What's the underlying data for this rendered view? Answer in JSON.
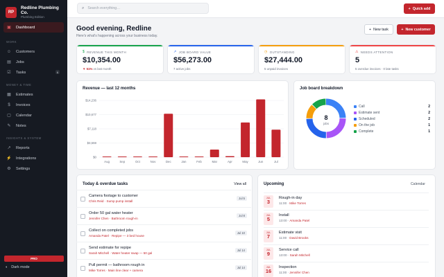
{
  "brand": {
    "logo": "RP",
    "name": "Redline Plumbing Co.",
    "subtitle": "Plumbing Edition"
  },
  "sidebar": {
    "dashboard": "Dashboard",
    "sections": {
      "work": "WORK",
      "money": "MONEY & TIME",
      "insights": "INSIGHTS & SYSTEM"
    },
    "items": {
      "customers": "Customers",
      "jobs": "Jobs",
      "tasks": "Tasks",
      "tasks_badge": "6",
      "estimates": "Estimates",
      "invoices": "Invoices",
      "calendar": "Calendar",
      "notes": "Notes",
      "reports": "Reports",
      "integrations": "Integrations",
      "settings": "Settings"
    },
    "pro": "PRO",
    "dark_mode": "Dark mode"
  },
  "topbar": {
    "search_placeholder": "Search everything…",
    "quick_add": "Quick add"
  },
  "header": {
    "greeting": "Good evening, Redline",
    "subtitle": "Here's what's happening across your business today.",
    "new_task": "New task",
    "new_customer": "New customer"
  },
  "stats": [
    {
      "label": "REVENUE THIS MONTH",
      "value": "$10,354.00",
      "delta": "51%",
      "sub": "vs last month",
      "color": "#16a34a",
      "icon": "dollar-icon"
    },
    {
      "label": "JOB BOARD VALUE",
      "value": "$56,273.00",
      "sub": "7 active jobs",
      "color": "#2563eb",
      "icon": "trend-icon"
    },
    {
      "label": "OUTSTANDING",
      "value": "$27,444.00",
      "sub": "5 unpaid invoices",
      "color": "#f59e0b",
      "icon": "clock-icon"
    },
    {
      "label": "NEEDS ATTENTION",
      "value": "5",
      "sub": "5 overdue invoices · 0 late tasks",
      "color": "#ef4444",
      "icon": "warning-icon"
    }
  ],
  "revenue_panel": {
    "title": "Revenue — last 12 months"
  },
  "chart_data": [
    {
      "type": "bar",
      "title": "Revenue — last 12 months",
      "categories": [
        "Aug",
        "Sep",
        "Oct",
        "Nov",
        "Dec",
        "Jan",
        "Feb",
        "Mar",
        "Apr",
        "May",
        "Jun",
        "Jul"
      ],
      "values": [
        0,
        0,
        150,
        0,
        10900,
        0,
        0,
        1900,
        250,
        8700,
        14500,
        6900
      ],
      "ytick_labels": [
        "$0",
        "$3,559",
        "$7,118",
        "$10,677",
        "$14,236"
      ],
      "ylim": [
        0,
        14236
      ],
      "grid": true,
      "color": "#c3262d"
    },
    {
      "type": "pie",
      "title": "Job board breakdown",
      "center_value": "8",
      "center_label": "jobs",
      "labels": [
        "Call",
        "Estimate sent",
        "Scheduled",
        "On the job",
        "Complete"
      ],
      "values": [
        2,
        2,
        2,
        1,
        1
      ],
      "colors": [
        "#3b82f6",
        "#a855f7",
        "#2563eb",
        "#f59e0b",
        "#16a34a"
      ]
    }
  ],
  "jobs_panel": {
    "title": "Job board breakdown"
  },
  "tasks_panel": {
    "title": "Today & overdue tasks",
    "view_all": "View all",
    "items": [
      {
        "title": "Camera footage to customer",
        "meta": "Chris Reid · Sump pump install",
        "date": "Jul 5"
      },
      {
        "title": "Order 50 gal water heater",
        "meta": "Jennifer Chen · Bathroom rough-in",
        "date": "Jul 8"
      },
      {
        "title": "Collect on completed jobs",
        "meta": "Amanda Patel · Repipe — 3 bed house",
        "date": "Jul 10"
      },
      {
        "title": "Send estimate for repipe",
        "meta": "Sarah Mitchell · Water heater swap — 50 gal",
        "date": "Jul 14"
      },
      {
        "title": "Pull permit — bathroom rough in",
        "meta": "Mike Torres · Main line clear + camera",
        "date": "Jul 14"
      }
    ]
  },
  "upcoming": {
    "title": "Upcoming",
    "calendar_link": "Calendar",
    "items": [
      {
        "month": "JUL",
        "day": "3",
        "title": "Rough-in day",
        "time": "11:00",
        "who": "Mike Torres"
      },
      {
        "month": "JUL",
        "day": "5",
        "title": "Install",
        "time": "13:00",
        "who": "Amanda Patel"
      },
      {
        "month": "JUL",
        "day": "7",
        "title": "Estimate visit",
        "time": "11:00",
        "who": "David Brooks"
      },
      {
        "month": "JUL",
        "day": "9",
        "title": "Service call",
        "time": "13:00",
        "who": "Sarah Mitchell"
      },
      {
        "month": "JUL",
        "day": "16",
        "title": "Inspection",
        "time": "11:00",
        "who": "Jennifer Chen"
      }
    ]
  }
}
